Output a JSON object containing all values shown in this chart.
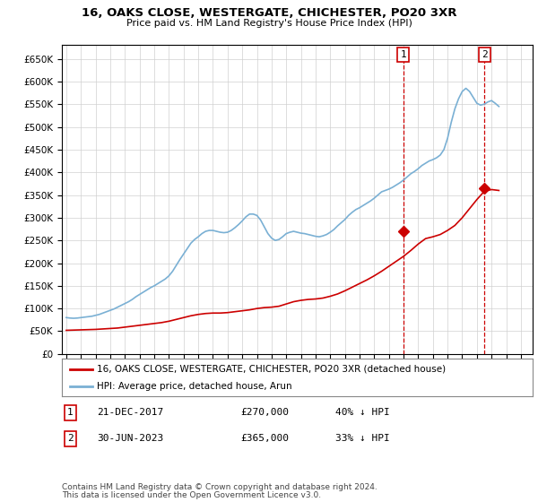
{
  "title": "16, OAKS CLOSE, WESTERGATE, CHICHESTER, PO20 3XR",
  "subtitle": "Price paid vs. HM Land Registry's House Price Index (HPI)",
  "ylim": [
    0,
    680000
  ],
  "yticks": [
    0,
    50000,
    100000,
    150000,
    200000,
    250000,
    300000,
    350000,
    400000,
    450000,
    500000,
    550000,
    600000,
    650000
  ],
  "xlim_start": 1994.7,
  "xlim_end": 2026.8,
  "xticks": [
    1995,
    1996,
    1997,
    1998,
    1999,
    2000,
    2001,
    2002,
    2003,
    2004,
    2005,
    2006,
    2007,
    2008,
    2009,
    2010,
    2011,
    2012,
    2013,
    2014,
    2015,
    2016,
    2017,
    2018,
    2019,
    2020,
    2021,
    2022,
    2023,
    2024,
    2025,
    2026
  ],
  "hpi_color": "#7ab0d4",
  "price_color": "#cc0000",
  "marker_color": "#cc0000",
  "dashed_color": "#cc0000",
  "annotation_box_color": "#cc0000",
  "background_color": "#ffffff",
  "grid_color": "#d0d0d0",
  "sale1_x": 2017.97,
  "sale1_y": 270000,
  "sale2_x": 2023.5,
  "sale2_y": 365000,
  "footer_text1": "Contains HM Land Registry data © Crown copyright and database right 2024.",
  "footer_text2": "This data is licensed under the Open Government Licence v3.0.",
  "table_row1": [
    "1",
    "21-DEC-2017",
    "£270,000",
    "40% ↓ HPI"
  ],
  "table_row2": [
    "2",
    "30-JUN-2023",
    "£365,000",
    "33% ↓ HPI"
  ],
  "legend_label1": "16, OAKS CLOSE, WESTERGATE, CHICHESTER, PO20 3XR (detached house)",
  "legend_label2": "HPI: Average price, detached house, Arun",
  "hpi_data_x": [
    1995.0,
    1995.25,
    1995.5,
    1995.75,
    1996.0,
    1996.25,
    1996.5,
    1996.75,
    1997.0,
    1997.25,
    1997.5,
    1997.75,
    1998.0,
    1998.25,
    1998.5,
    1998.75,
    1999.0,
    1999.25,
    1999.5,
    1999.75,
    2000.0,
    2000.25,
    2000.5,
    2000.75,
    2001.0,
    2001.25,
    2001.5,
    2001.75,
    2002.0,
    2002.25,
    2002.5,
    2002.75,
    2003.0,
    2003.25,
    2003.5,
    2003.75,
    2004.0,
    2004.25,
    2004.5,
    2004.75,
    2005.0,
    2005.25,
    2005.5,
    2005.75,
    2006.0,
    2006.25,
    2006.5,
    2006.75,
    2007.0,
    2007.25,
    2007.5,
    2007.75,
    2008.0,
    2008.25,
    2008.5,
    2008.75,
    2009.0,
    2009.25,
    2009.5,
    2009.75,
    2010.0,
    2010.25,
    2010.5,
    2010.75,
    2011.0,
    2011.25,
    2011.5,
    2011.75,
    2012.0,
    2012.25,
    2012.5,
    2012.75,
    2013.0,
    2013.25,
    2013.5,
    2013.75,
    2014.0,
    2014.25,
    2014.5,
    2014.75,
    2015.0,
    2015.25,
    2015.5,
    2015.75,
    2016.0,
    2016.25,
    2016.5,
    2016.75,
    2017.0,
    2017.25,
    2017.5,
    2017.75,
    2018.0,
    2018.25,
    2018.5,
    2018.75,
    2019.0,
    2019.25,
    2019.5,
    2019.75,
    2020.0,
    2020.25,
    2020.5,
    2020.75,
    2021.0,
    2021.25,
    2021.5,
    2021.75,
    2022.0,
    2022.25,
    2022.5,
    2022.75,
    2023.0,
    2023.25,
    2023.5,
    2023.75,
    2024.0,
    2024.25,
    2024.5
  ],
  "hpi_data_y": [
    80000,
    79000,
    78500,
    79000,
    80000,
    81000,
    82000,
    83000,
    85000,
    87000,
    90000,
    93000,
    96000,
    99000,
    103000,
    107000,
    111000,
    115000,
    120000,
    126000,
    131000,
    136000,
    141000,
    146000,
    150000,
    155000,
    160000,
    165000,
    172000,
    182000,
    195000,
    208000,
    220000,
    232000,
    244000,
    252000,
    258000,
    265000,
    270000,
    272000,
    272000,
    270000,
    268000,
    267000,
    268000,
    272000,
    278000,
    285000,
    293000,
    302000,
    308000,
    308000,
    305000,
    295000,
    280000,
    265000,
    255000,
    250000,
    252000,
    258000,
    265000,
    268000,
    270000,
    268000,
    266000,
    265000,
    263000,
    261000,
    259000,
    258000,
    260000,
    263000,
    268000,
    274000,
    282000,
    289000,
    296000,
    305000,
    312000,
    318000,
    322000,
    327000,
    332000,
    337000,
    343000,
    350000,
    357000,
    360000,
    363000,
    367000,
    372000,
    377000,
    383000,
    390000,
    397000,
    402000,
    408000,
    415000,
    420000,
    425000,
    428000,
    432000,
    438000,
    450000,
    475000,
    510000,
    540000,
    562000,
    578000,
    585000,
    578000,
    565000,
    552000,
    548000,
    550000,
    555000,
    558000,
    552000,
    545000
  ],
  "price_data_x": [
    1995.0,
    1995.5,
    1996.0,
    1996.5,
    1997.0,
    1997.5,
    1998.0,
    1998.5,
    1999.0,
    1999.5,
    2000.0,
    2000.5,
    2001.0,
    2001.5,
    2002.0,
    2002.5,
    2003.0,
    2003.5,
    2004.0,
    2004.5,
    2005.0,
    2005.5,
    2006.0,
    2006.5,
    2007.0,
    2007.5,
    2008.0,
    2008.5,
    2009.0,
    2009.5,
    2010.0,
    2010.5,
    2011.0,
    2011.5,
    2012.0,
    2012.5,
    2013.0,
    2013.5,
    2014.0,
    2014.5,
    2015.0,
    2015.5,
    2016.0,
    2016.5,
    2017.0,
    2017.5,
    2018.0,
    2018.5,
    2019.0,
    2019.5,
    2020.0,
    2020.5,
    2021.0,
    2021.5,
    2022.0,
    2022.5,
    2023.0,
    2023.5,
    2024.0,
    2024.5
  ],
  "price_data_y": [
    52000,
    52500,
    53000,
    53500,
    54000,
    55000,
    56000,
    57000,
    59000,
    61000,
    63000,
    65000,
    67000,
    69000,
    72000,
    76000,
    80000,
    84000,
    87000,
    89000,
    90000,
    90000,
    91000,
    93000,
    95000,
    97000,
    100000,
    102000,
    103000,
    105000,
    110000,
    115000,
    118000,
    120000,
    121000,
    123000,
    127000,
    132000,
    139000,
    147000,
    155000,
    163000,
    172000,
    182000,
    193000,
    204000,
    215000,
    228000,
    242000,
    254000,
    258000,
    263000,
    272000,
    283000,
    300000,
    320000,
    340000,
    358000,
    362000,
    360000
  ]
}
